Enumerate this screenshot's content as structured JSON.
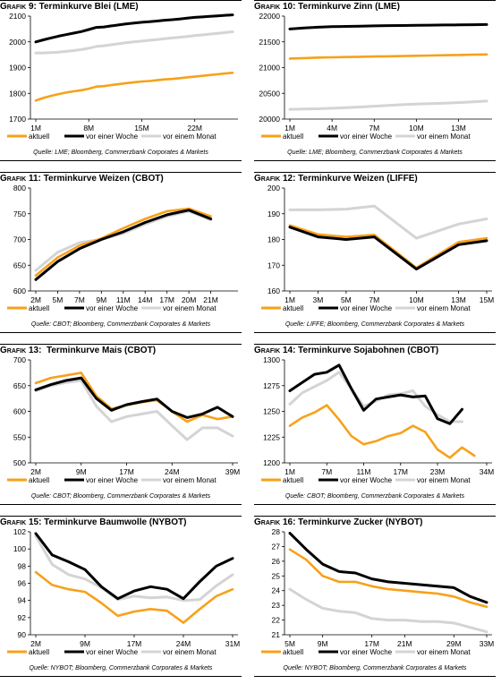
{
  "colors": {
    "aktuell": "#f7a11a",
    "woche": "#000000",
    "monat": "#d4d4d4"
  },
  "legend": {
    "aktuell": "aktuell",
    "woche": "vor einer Woche",
    "monat": "vor einem Monat"
  },
  "panels": [
    {
      "title_prefix": "Grafik 9:",
      "title_rest": " Terminkurve Blei (LME)",
      "source": "Quelle: LME; Bloomberg, Commerzbank Corporates & Markets"
    },
    {
      "title_prefix": "Grafik 10:",
      "title_rest": " Terminkurve Zinn (LME)",
      "source": "Quelle: LME; Bloomberg, Commerzbank Corporates & Markets"
    },
    {
      "title_prefix": "Grafik 11:",
      "title_rest": " Terminkurve Weizen (CBOT)",
      "source": "Quelle: CBOT; Bloomberg, Commerzbank Corporates & Markets"
    },
    {
      "title_prefix": "Grafik 12:",
      "title_rest": " Terminkurve Weizen (LIFFE)",
      "source": "Quelle: LIFFE; Bloomberg, Commerzbank Corporates & Markets"
    },
    {
      "title_prefix": "Grafik 13:",
      "title_rest": "  Terminkurve Mais (CBOT)",
      "source": "Quelle: CBOT; Bloomberg, Commerzbank Corporates & Markets"
    },
    {
      "title_prefix": "Grafik 14:",
      "title_rest": " Terminkurve Sojabohnen (CBOT)",
      "source": "Quelle: CBOT; Bloomberg, Commerzbank Corporates & Markets"
    },
    {
      "title_prefix": "Grafik 15:",
      "title_rest": " Terminkurve Baumwolle (NYBOT)",
      "source": "Quelle: NYBOT; Bloomberg, Commerzbank Corporates & Markets"
    },
    {
      "title_prefix": "Grafik 16:",
      "title_rest": " Terminkurve Zucker (NYBOT)",
      "source": "Quelle: NYBOT; Bloomberg, Commerzbank Corporates & Markets"
    }
  ],
  "chart_data": [
    {
      "type": "line",
      "ylim": [
        1700,
        2100
      ],
      "yticks": [
        1700,
        1800,
        1900,
        2000,
        2100
      ],
      "x": [
        1,
        2,
        3,
        4,
        5,
        6,
        7,
        8,
        9,
        10,
        11,
        12,
        13,
        14,
        15,
        16,
        17,
        18,
        19,
        20,
        21,
        22,
        23,
        24,
        25,
        26,
        27
      ],
      "xticks": [
        "1M",
        "8M",
        "15M",
        "22M"
      ],
      "xtick_at": [
        1,
        8,
        15,
        22
      ],
      "series": [
        {
          "name": "aktuell",
          "values": [
            1772,
            1782,
            1790,
            1797,
            1803,
            1808,
            1812,
            1818,
            1826,
            1828,
            1832,
            1836,
            1840,
            1843,
            1846,
            1848,
            1851,
            1854,
            1856,
            1859,
            1862,
            1865,
            1868,
            1871,
            1874,
            1877,
            1880
          ]
        },
        {
          "name": "vor einer Woche",
          "values": [
            2000,
            2008,
            2015,
            2022,
            2028,
            2034,
            2040,
            2048,
            2056,
            2058,
            2062,
            2066,
            2070,
            2073,
            2076,
            2078,
            2081,
            2084,
            2086,
            2089,
            2092,
            2095,
            2097,
            2099,
            2101,
            2103,
            2105
          ]
        },
        {
          "name": "vor einem Monat",
          "values": [
            1957,
            1957,
            1958,
            1960,
            1963,
            1966,
            1970,
            1975,
            1982,
            1985,
            1989,
            1993,
            1997,
            2000,
            2003,
            2006,
            2009,
            2012,
            2015,
            2018,
            2021,
            2024,
            2027,
            2030,
            2033,
            2036,
            2039
          ]
        }
      ]
    },
    {
      "type": "line",
      "ylim": [
        20000,
        22000
      ],
      "yticks": [
        20000,
        20500,
        21000,
        21500,
        22000
      ],
      "x": [
        1,
        2,
        3,
        4,
        5,
        6,
        7,
        8,
        9,
        10,
        11,
        12,
        13,
        14,
        15
      ],
      "xticks": [
        "1M",
        "4M",
        "7M",
        "10M",
        "13M"
      ],
      "xtick_at": [
        1,
        4,
        7,
        10,
        13
      ],
      "series": [
        {
          "name": "aktuell",
          "values": [
            21175,
            21185,
            21195,
            21200,
            21205,
            21210,
            21215,
            21220,
            21225,
            21230,
            21235,
            21240,
            21245,
            21250,
            21255
          ]
        },
        {
          "name": "vor einer Woche",
          "values": [
            21750,
            21770,
            21785,
            21795,
            21800,
            21805,
            21810,
            21815,
            21818,
            21821,
            21824,
            21827,
            21830,
            21833,
            21836
          ]
        },
        {
          "name": "vor einem Monat",
          "values": [
            20190,
            20195,
            20200,
            20210,
            20220,
            20235,
            20250,
            20265,
            20280,
            20290,
            20300,
            20310,
            20320,
            20335,
            20350
          ]
        }
      ]
    },
    {
      "type": "line",
      "ylim": [
        600,
        800
      ],
      "yticks": [
        600,
        650,
        700,
        750,
        800
      ],
      "x": [
        1,
        2,
        3,
        4,
        5,
        6,
        7,
        8,
        9,
        10
      ],
      "xticks": [
        "2M",
        "5M",
        "7M",
        "9M",
        "11M",
        "14M",
        "17M",
        "20M",
        "21M"
      ],
      "xtick_at": [
        1,
        2,
        3,
        4,
        5,
        6,
        7,
        8,
        9
      ],
      "series": [
        {
          "name": "aktuell",
          "values": [
            630,
            665,
            688,
            702,
            722,
            740,
            755,
            760,
            745,
            null
          ]
        },
        {
          "name": "vor einer Woche",
          "values": [
            622,
            657,
            682,
            700,
            715,
            733,
            748,
            757,
            740,
            null
          ]
        },
        {
          "name": "vor einem Monat",
          "values": [
            640,
            675,
            694,
            700,
            712,
            730,
            745,
            755,
            738,
            null
          ]
        }
      ]
    },
    {
      "type": "line",
      "ylim": [
        160,
        200
      ],
      "yticks": [
        160,
        170,
        180,
        190,
        200
      ],
      "x": [
        1,
        3,
        5,
        7,
        10,
        13,
        15
      ],
      "xticks": [
        "1M",
        "3M",
        "5M",
        "7M",
        "10M",
        "13M",
        "15M"
      ],
      "xtick_at": [
        1,
        3,
        5,
        7,
        10,
        13,
        15
      ],
      "series": [
        {
          "name": "aktuell",
          "values": [
            185.5,
            182,
            181,
            181.8,
            169,
            179,
            180.5
          ]
        },
        {
          "name": "vor einer Woche",
          "values": [
            184.8,
            181,
            180,
            181,
            168.5,
            178,
            179.5
          ]
        },
        {
          "name": "vor einem Monat",
          "values": [
            191.5,
            191.5,
            191.8,
            193,
            180.5,
            186,
            188
          ]
        }
      ]
    },
    {
      "type": "line",
      "ylim": [
        500,
        700
      ],
      "yticks": [
        500,
        550,
        600,
        650,
        700
      ],
      "x": [
        1,
        2,
        3,
        4,
        5,
        6,
        7,
        8,
        9,
        10,
        11,
        12,
        13,
        14
      ],
      "xticks": [
        "2M",
        "9M",
        "17M",
        "24M",
        "39M"
      ],
      "xtick_at": [
        1,
        4,
        7,
        10,
        14
      ],
      "series": [
        {
          "name": "aktuell",
          "values": [
            655,
            665,
            670,
            675,
            630,
            605,
            612,
            618,
            622,
            600,
            580,
            593,
            585,
            590
          ]
        },
        {
          "name": "vor einer Woche",
          "values": [
            642,
            652,
            660,
            665,
            625,
            602,
            613,
            619,
            624,
            600,
            588,
            595,
            608,
            590
          ]
        },
        {
          "name": "vor einem Monat",
          "values": [
            640,
            650,
            656,
            660,
            610,
            580,
            590,
            595,
            600,
            572,
            545,
            568,
            568,
            552
          ]
        }
      ]
    },
    {
      "type": "line",
      "ylim": [
        1200,
        1300
      ],
      "yticks": [
        1200,
        1225,
        1250,
        1275,
        1300
      ],
      "x": [
        1,
        2,
        3,
        4,
        5,
        6,
        7,
        8,
        9,
        10,
        11,
        12,
        13,
        14,
        15,
        16,
        17
      ],
      "xticks": [
        "1M",
        "7M",
        "11M",
        "17M",
        "23M",
        "34M"
      ],
      "xtick_at": [
        1,
        4,
        7,
        10,
        13,
        17
      ],
      "series": [
        {
          "name": "aktuell",
          "values": [
            1236,
            1244,
            1249,
            1256,
            1242,
            1226,
            1218,
            1221,
            1226,
            1229,
            1236,
            1230,
            1213,
            1205,
            1215,
            1207,
            null
          ]
        },
        {
          "name": "vor einer Woche",
          "values": [
            1270,
            1278,
            1286,
            1288,
            1295,
            1272,
            1251,
            1262,
            1264,
            1266,
            1264,
            1265,
            1243,
            1238,
            1252,
            null,
            null
          ]
        },
        {
          "name": "vor einem Monat",
          "values": [
            1257,
            1268,
            1274,
            1280,
            1288,
            1272,
            1255,
            1260,
            1266,
            1267,
            1270,
            1255,
            1247,
            1240,
            1240,
            null,
            null
          ]
        }
      ]
    },
    {
      "type": "line",
      "ylim": [
        90,
        102
      ],
      "yticks": [
        90,
        92,
        94,
        96,
        98,
        100,
        102
      ],
      "x": [
        1,
        2,
        3,
        4,
        5,
        6,
        7,
        8,
        9,
        10,
        11,
        12,
        13
      ],
      "xticks": [
        "2M",
        "9M",
        "17M",
        "24M",
        "31M"
      ],
      "xtick_at": [
        1,
        4,
        7,
        10,
        13
      ],
      "series": [
        {
          "name": "aktuell",
          "values": [
            97.3,
            95.8,
            95.3,
            95.0,
            93.7,
            92.2,
            92.7,
            93.0,
            92.8,
            91.4,
            93.0,
            94.5,
            95.3
          ]
        },
        {
          "name": "vor einer Woche",
          "values": [
            101.8,
            99.3,
            98.5,
            97.6,
            95.6,
            94.2,
            95.1,
            95.6,
            95.3,
            94.2,
            96.2,
            98.0,
            98.9
          ]
        },
        {
          "name": "vor einem Monat",
          "values": [
            101.5,
            98.2,
            97.0,
            96.5,
            95.5,
            94.1,
            94.5,
            94.3,
            94.4,
            94.0,
            94.1,
            95.7,
            97.0
          ]
        }
      ]
    },
    {
      "type": "line",
      "ylim": [
        21,
        28
      ],
      "yticks": [
        21,
        22,
        23,
        24,
        25,
        26,
        27,
        28
      ],
      "x": [
        1,
        2,
        3,
        4,
        5,
        6,
        7,
        8,
        9,
        10,
        11,
        12,
        13
      ],
      "xticks": [
        "5M",
        "9M",
        "17M",
        "21M",
        "29M",
        "33M"
      ],
      "xtick_at": [
        1,
        3,
        6,
        8,
        11,
        13
      ],
      "series": [
        {
          "name": "aktuell",
          "values": [
            26.8,
            26.1,
            25.0,
            24.6,
            24.6,
            24.3,
            24.1,
            24.0,
            23.9,
            23.8,
            23.6,
            23.2,
            22.9
          ]
        },
        {
          "name": "vor einer Woche",
          "values": [
            27.9,
            26.8,
            25.8,
            25.3,
            25.2,
            24.8,
            24.6,
            24.5,
            24.4,
            24.3,
            24.2,
            23.6,
            23.2
          ]
        },
        {
          "name": "vor einem Monat",
          "values": [
            24.1,
            23.4,
            22.8,
            22.6,
            22.5,
            22.1,
            22.0,
            22.0,
            21.9,
            21.9,
            21.8,
            21.5,
            21.2
          ]
        }
      ]
    }
  ]
}
